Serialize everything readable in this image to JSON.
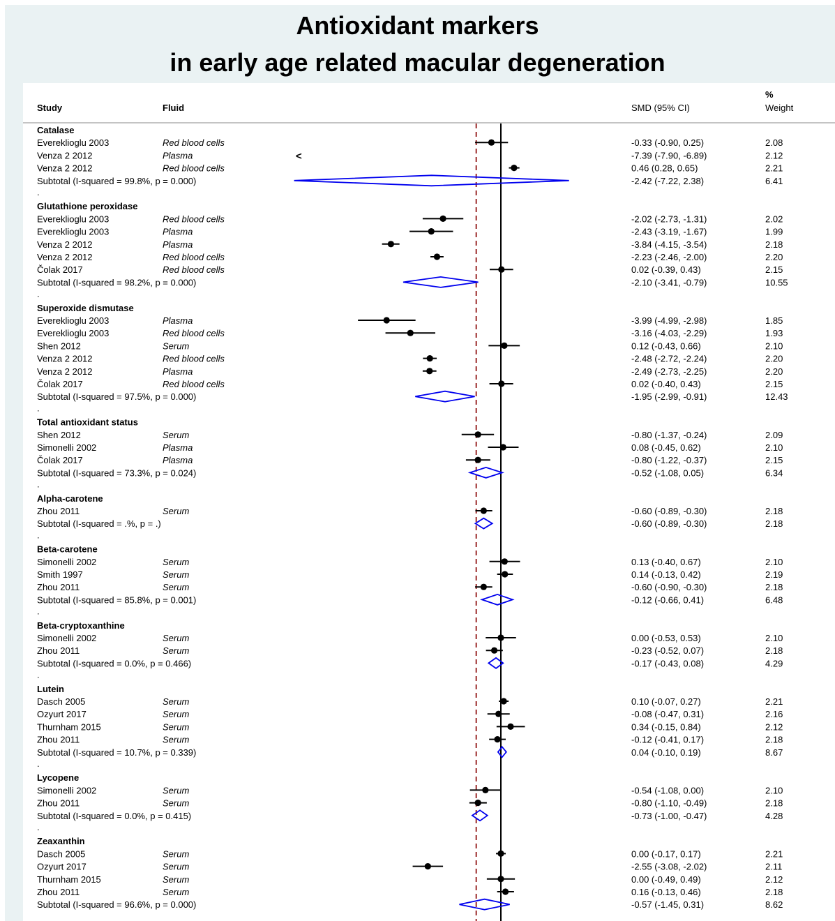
{
  "title_line1": "Antioxidant markers",
  "title_line2": "in early age related macular degeneration",
  "columns": {
    "study": "Study",
    "fluid": "Fluid",
    "smd": "SMD (95% CI)",
    "weight_pct": "%",
    "weight": "Weight"
  },
  "colors": {
    "background": "#eaf2f3",
    "diamond": "#0000ee",
    "overall_line": "#9b2a2a",
    "marker": "#000000"
  },
  "chart_data": {
    "type": "forest",
    "null_line": 0,
    "overall_estimate": -0.86,
    "x_range": [
      -7.22,
      2.38
    ],
    "arrow_symbol": "<",
    "rows": [
      {
        "kind": "header",
        "label": "Catalase"
      },
      {
        "kind": "study",
        "study": "Evereklioglu 2003",
        "fluid": "Red blood cells",
        "est": -0.33,
        "lo": -0.9,
        "hi": 0.25,
        "ci": "-0.33 (-0.90, 0.25)",
        "weight": "2.08"
      },
      {
        "kind": "study",
        "study": "Venza 2 2012",
        "fluid": "Plasma",
        "est": -7.39,
        "lo": -7.9,
        "hi": -6.89,
        "ci": "-7.39 (-7.90, -6.89)",
        "weight": "2.12"
      },
      {
        "kind": "study",
        "study": "Venza 2 2012",
        "fluid": "Red blood cells",
        "est": 0.46,
        "lo": 0.28,
        "hi": 0.65,
        "ci": "0.46 (0.28, 0.65)",
        "weight": "2.21"
      },
      {
        "kind": "subtotal",
        "study": "Subtotal  (I-squared = 99.8%, p = 0.000)",
        "est": -2.42,
        "lo": -7.22,
        "hi": 2.38,
        "ci": "-2.42 (-7.22, 2.38)",
        "weight": "6.41"
      },
      {
        "kind": "dot",
        "label": "."
      },
      {
        "kind": "header",
        "label": "Glutathione peroxidase"
      },
      {
        "kind": "study",
        "study": "Evereklioglu 2003",
        "fluid": "Red blood cells",
        "est": -2.02,
        "lo": -2.73,
        "hi": -1.31,
        "ci": "-2.02 (-2.73, -1.31)",
        "weight": "2.02"
      },
      {
        "kind": "study",
        "study": "Evereklioglu 2003",
        "fluid": "Plasma",
        "est": -2.43,
        "lo": -3.19,
        "hi": -1.67,
        "ci": "-2.43 (-3.19, -1.67)",
        "weight": "1.99"
      },
      {
        "kind": "study",
        "study": "Venza 2 2012",
        "fluid": "Plasma",
        "est": -3.84,
        "lo": -4.15,
        "hi": -3.54,
        "ci": "-3.84 (-4.15, -3.54)",
        "weight": "2.18"
      },
      {
        "kind": "study",
        "study": "Venza 2 2012",
        "fluid": "Red blood cells",
        "est": -2.23,
        "lo": -2.46,
        "hi": -2.0,
        "ci": "-2.23 (-2.46, -2.00)",
        "weight": "2.20"
      },
      {
        "kind": "study",
        "study": "Čolak 2017",
        "fluid": "Red blood cells",
        "est": 0.02,
        "lo": -0.39,
        "hi": 0.43,
        "ci": "0.02 (-0.39, 0.43)",
        "weight": "2.15"
      },
      {
        "kind": "subtotal",
        "study": "Subtotal  (I-squared = 98.2%, p = 0.000)",
        "est": -2.1,
        "lo": -3.41,
        "hi": -0.79,
        "ci": "-2.10 (-3.41, -0.79)",
        "weight": "10.55"
      },
      {
        "kind": "dot",
        "label": "."
      },
      {
        "kind": "header",
        "label": "Superoxide dismutase"
      },
      {
        "kind": "study",
        "study": "Evereklioglu 2003",
        "fluid": "Plasma",
        "est": -3.99,
        "lo": -4.99,
        "hi": -2.98,
        "ci": "-3.99 (-4.99, -2.98)",
        "weight": "1.85"
      },
      {
        "kind": "study",
        "study": "Evereklioglu 2003",
        "fluid": "Red blood cells",
        "est": -3.16,
        "lo": -4.03,
        "hi": -2.29,
        "ci": "-3.16 (-4.03, -2.29)",
        "weight": "1.93"
      },
      {
        "kind": "study",
        "study": "Shen 2012",
        "fluid": "Serum",
        "est": 0.12,
        "lo": -0.43,
        "hi": 0.66,
        "ci": "0.12 (-0.43, 0.66)",
        "weight": "2.10"
      },
      {
        "kind": "study",
        "study": "Venza 2 2012",
        "fluid": "Red blood cells",
        "est": -2.48,
        "lo": -2.72,
        "hi": -2.24,
        "ci": "-2.48 (-2.72, -2.24)",
        "weight": "2.20"
      },
      {
        "kind": "study",
        "study": "Venza 2 2012",
        "fluid": "Plasma",
        "est": -2.49,
        "lo": -2.73,
        "hi": -2.25,
        "ci": "-2.49 (-2.73, -2.25)",
        "weight": "2.20"
      },
      {
        "kind": "study",
        "study": "Čolak 2017",
        "fluid": "Red blood cells",
        "est": 0.02,
        "lo": -0.4,
        "hi": 0.43,
        "ci": "0.02 (-0.40, 0.43)",
        "weight": "2.15"
      },
      {
        "kind": "subtotal",
        "study": "Subtotal  (I-squared = 97.5%, p = 0.000)",
        "est": -1.95,
        "lo": -2.99,
        "hi": -0.91,
        "ci": "-1.95 (-2.99, -0.91)",
        "weight": "12.43"
      },
      {
        "kind": "dot",
        "label": "."
      },
      {
        "kind": "header",
        "label": "Total antioxidant status"
      },
      {
        "kind": "study",
        "study": "Shen 2012",
        "fluid": "Serum",
        "est": -0.8,
        "lo": -1.37,
        "hi": -0.24,
        "ci": "-0.80 (-1.37, -0.24)",
        "weight": "2.09"
      },
      {
        "kind": "study",
        "study": "Simonelli 2002",
        "fluid": "Plasma",
        "est": 0.08,
        "lo": -0.45,
        "hi": 0.62,
        "ci": "0.08 (-0.45, 0.62)",
        "weight": "2.10"
      },
      {
        "kind": "study",
        "study": "Čolak 2017",
        "fluid": "Plasma",
        "est": -0.8,
        "lo": -1.22,
        "hi": -0.37,
        "ci": "-0.80 (-1.22, -0.37)",
        "weight": "2.15"
      },
      {
        "kind": "subtotal",
        "study": "Subtotal  (I-squared = 73.3%, p = 0.024)",
        "est": -0.52,
        "lo": -1.08,
        "hi": 0.05,
        "ci": "-0.52 (-1.08, 0.05)",
        "weight": "6.34"
      },
      {
        "kind": "dot",
        "label": "."
      },
      {
        "kind": "header",
        "label": "Alpha-carotene"
      },
      {
        "kind": "study",
        "study": "Zhou 2011",
        "fluid": "Serum",
        "est": -0.6,
        "lo": -0.89,
        "hi": -0.3,
        "ci": "-0.60 (-0.89, -0.30)",
        "weight": "2.18"
      },
      {
        "kind": "subtotal",
        "study": "Subtotal  (I-squared = .%, p = .)",
        "est": -0.6,
        "lo": -0.89,
        "hi": -0.3,
        "ci": "-0.60 (-0.89, -0.30)",
        "weight": "2.18"
      },
      {
        "kind": "dot",
        "label": "."
      },
      {
        "kind": "header",
        "label": "Beta-carotene"
      },
      {
        "kind": "study",
        "study": "Simonelli 2002",
        "fluid": "Serum",
        "est": 0.13,
        "lo": -0.4,
        "hi": 0.67,
        "ci": "0.13 (-0.40, 0.67)",
        "weight": "2.10"
      },
      {
        "kind": "study",
        "study": "Smith 1997",
        "fluid": "Serum",
        "est": 0.14,
        "lo": -0.13,
        "hi": 0.42,
        "ci": "0.14 (-0.13, 0.42)",
        "weight": "2.19"
      },
      {
        "kind": "study",
        "study": "Zhou 2011",
        "fluid": "Serum",
        "est": -0.6,
        "lo": -0.9,
        "hi": -0.3,
        "ci": "-0.60 (-0.90, -0.30)",
        "weight": "2.18"
      },
      {
        "kind": "subtotal",
        "study": "Subtotal  (I-squared = 85.8%, p = 0.001)",
        "est": -0.12,
        "lo": -0.66,
        "hi": 0.41,
        "ci": "-0.12 (-0.66, 0.41)",
        "weight": "6.48"
      },
      {
        "kind": "dot",
        "label": "."
      },
      {
        "kind": "header",
        "label": "Beta-cryptoxanthine"
      },
      {
        "kind": "study",
        "study": "Simonelli 2002",
        "fluid": "Serum",
        "est": 0.0,
        "lo": -0.53,
        "hi": 0.53,
        "ci": "0.00 (-0.53, 0.53)",
        "weight": "2.10"
      },
      {
        "kind": "study",
        "study": "Zhou 2011",
        "fluid": "Serum",
        "est": -0.23,
        "lo": -0.52,
        "hi": 0.07,
        "ci": "-0.23 (-0.52, 0.07)",
        "weight": "2.18"
      },
      {
        "kind": "subtotal",
        "study": "Subtotal  (I-squared = 0.0%, p = 0.466)",
        "est": -0.17,
        "lo": -0.43,
        "hi": 0.08,
        "ci": "-0.17 (-0.43, 0.08)",
        "weight": "4.29"
      },
      {
        "kind": "dot",
        "label": "."
      },
      {
        "kind": "header",
        "label": "Lutein"
      },
      {
        "kind": "study",
        "study": "Dasch 2005",
        "fluid": "Serum",
        "est": 0.1,
        "lo": -0.07,
        "hi": 0.27,
        "ci": "0.10 (-0.07, 0.27)",
        "weight": "2.21"
      },
      {
        "kind": "study",
        "study": "Ozyurt 2017",
        "fluid": "Serum",
        "est": -0.08,
        "lo": -0.47,
        "hi": 0.31,
        "ci": "-0.08 (-0.47, 0.31)",
        "weight": "2.16"
      },
      {
        "kind": "study",
        "study": "Thurnham 2015",
        "fluid": "Serum",
        "est": 0.34,
        "lo": -0.15,
        "hi": 0.84,
        "ci": "0.34 (-0.15, 0.84)",
        "weight": "2.12"
      },
      {
        "kind": "study",
        "study": "Zhou 2011",
        "fluid": "Serum",
        "est": -0.12,
        "lo": -0.41,
        "hi": 0.17,
        "ci": "-0.12 (-0.41, 0.17)",
        "weight": "2.18"
      },
      {
        "kind": "subtotal",
        "study": "Subtotal  (I-squared = 10.7%, p = 0.339)",
        "est": 0.04,
        "lo": -0.1,
        "hi": 0.19,
        "ci": "0.04 (-0.10, 0.19)",
        "weight": "8.67"
      },
      {
        "kind": "dot",
        "label": "."
      },
      {
        "kind": "header",
        "label": "Lycopene"
      },
      {
        "kind": "study",
        "study": "Simonelli 2002",
        "fluid": "Serum",
        "est": -0.54,
        "lo": -1.08,
        "hi": 0.0,
        "ci": "-0.54 (-1.08, 0.00)",
        "weight": "2.10"
      },
      {
        "kind": "study",
        "study": "Zhou 2011",
        "fluid": "Serum",
        "est": -0.8,
        "lo": -1.1,
        "hi": -0.49,
        "ci": "-0.80 (-1.10, -0.49)",
        "weight": "2.18"
      },
      {
        "kind": "subtotal",
        "study": "Subtotal  (I-squared = 0.0%, p = 0.415)",
        "est": -0.73,
        "lo": -1.0,
        "hi": -0.47,
        "ci": "-0.73 (-1.00, -0.47)",
        "weight": "4.28"
      },
      {
        "kind": "dot",
        "label": "."
      },
      {
        "kind": "header",
        "label": "Zeaxanthin"
      },
      {
        "kind": "study",
        "study": "Dasch 2005",
        "fluid": "Serum",
        "est": 0.0,
        "lo": -0.17,
        "hi": 0.17,
        "ci": "0.00 (-0.17, 0.17)",
        "weight": "2.21"
      },
      {
        "kind": "study",
        "study": "Ozyurt 2017",
        "fluid": "Serum",
        "est": -2.55,
        "lo": -3.08,
        "hi": -2.02,
        "ci": "-2.55 (-3.08, -2.02)",
        "weight": "2.11"
      },
      {
        "kind": "study",
        "study": "Thurnham 2015",
        "fluid": "Serum",
        "est": 0.0,
        "lo": -0.49,
        "hi": 0.49,
        "ci": "0.00 (-0.49, 0.49)",
        "weight": "2.12"
      },
      {
        "kind": "study",
        "study": "Zhou 2011",
        "fluid": "Serum",
        "est": 0.16,
        "lo": -0.13,
        "hi": 0.46,
        "ci": "0.16 (-0.13, 0.46)",
        "weight": "2.18"
      },
      {
        "kind": "subtotal",
        "study": "Subtotal  (I-squared = 96.6%, p = 0.000)",
        "est": -0.57,
        "lo": -1.45,
        "hi": 0.31,
        "ci": "-0.57 (-1.45, 0.31)",
        "weight": "8.62"
      }
    ]
  }
}
